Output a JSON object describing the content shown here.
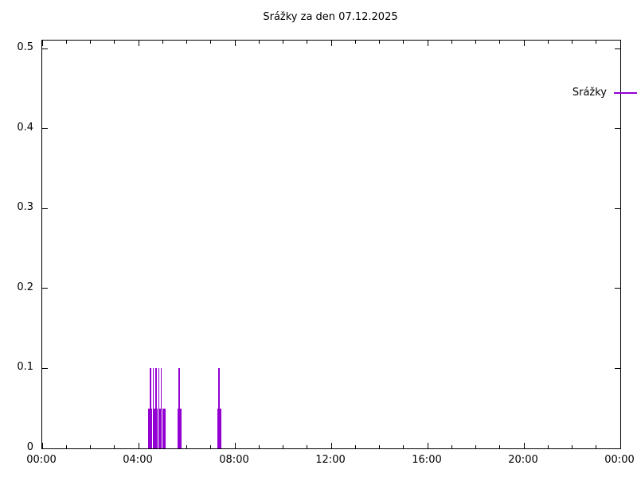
{
  "title": "Srážky za den 07.12.2025",
  "legend": {
    "label": "Srážky",
    "position": "top-right-inside"
  },
  "colors": {
    "series": "#9400d3",
    "axis": "#000000",
    "background": "#ffffff",
    "text": "#000000"
  },
  "chart_data": {
    "type": "bar",
    "style": "impulses",
    "title": "Srážky za den 07.12.2025",
    "xlabel": "",
    "ylabel": "",
    "grid": false,
    "legend_position": "top-right",
    "x_axis": {
      "unit": "time HH:MM",
      "range_minutes": [
        0,
        1440
      ],
      "major_ticks": [
        {
          "minutes": 0,
          "label": "00:00"
        },
        {
          "minutes": 240,
          "label": "04:00"
        },
        {
          "minutes": 480,
          "label": "08:00"
        },
        {
          "minutes": 720,
          "label": "12:00"
        },
        {
          "minutes": 960,
          "label": "16:00"
        },
        {
          "minutes": 1200,
          "label": "20:00"
        },
        {
          "minutes": 1440,
          "label": "00:00"
        }
      ],
      "minor_tick_interval_minutes": 60,
      "mirror_ticks": true
    },
    "y_axis": {
      "range": [
        0,
        0.51
      ],
      "ticks": [
        {
          "value": 0,
          "label": "0"
        },
        {
          "value": 0.1,
          "label": "0.1"
        },
        {
          "value": 0.2,
          "label": "0.2"
        },
        {
          "value": 0.3,
          "label": "0.3"
        },
        {
          "value": 0.4,
          "label": "0.4"
        },
        {
          "value": 0.5,
          "label": "0.5"
        }
      ],
      "mirror_ticks": true
    },
    "series": [
      {
        "name": "Srážky",
        "color": "#9400d3",
        "points": [
          {
            "time": "04:26",
            "value": 0.05
          },
          {
            "time": "04:30",
            "value": 0.1
          },
          {
            "time": "04:33",
            "value": 0.05
          },
          {
            "time": "04:37",
            "value": 0.1
          },
          {
            "time": "04:40",
            "value": 0.05
          },
          {
            "time": "04:44",
            "value": 0.1
          },
          {
            "time": "04:47",
            "value": 0.05
          },
          {
            "time": "04:51",
            "value": 0.1
          },
          {
            "time": "04:54",
            "value": 0.05
          },
          {
            "time": "04:57",
            "value": 0.1
          },
          {
            "time": "05:01",
            "value": 0.05
          },
          {
            "time": "05:05",
            "value": 0.05
          },
          {
            "time": "05:38",
            "value": 0.05
          },
          {
            "time": "05:41",
            "value": 0.1
          },
          {
            "time": "05:45",
            "value": 0.05
          },
          {
            "time": "07:17",
            "value": 0.05
          },
          {
            "time": "07:20",
            "value": 0.1
          },
          {
            "time": "07:24",
            "value": 0.05
          }
        ]
      }
    ]
  }
}
